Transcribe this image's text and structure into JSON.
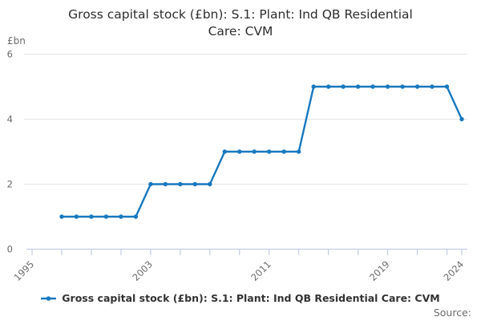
{
  "header": {
    "title": "Gross capital stock (£bn): S.1: Plant: Ind QB Residential Care: CVM",
    "title_lines": [
      "Gross capital stock (£bn): S.1: Plant: Ind QB Residential",
      "Care: CVM"
    ]
  },
  "axes": {
    "y_unit": "£bn",
    "y_tick_labels": [
      "0",
      "2",
      "4",
      "6"
    ],
    "x_tick_labels": [
      "1995",
      "2003",
      "2011",
      "2019",
      "2024"
    ]
  },
  "legend": {
    "label": "Gross capital stock (£bn): S.1: Plant: Ind QB Residential Care: CVM"
  },
  "footer": {
    "source": "Source:"
  },
  "colors": {
    "line": "#1878bf",
    "grid": "#e4e4e4",
    "axis": "#c5cde4",
    "tick_label": "#6b6b6b",
    "title": "#2e2e2e",
    "legend_text": "#333333",
    "source": "#6b6b6b"
  },
  "chart_data": {
    "type": "line",
    "title": "Gross capital stock (£bn): S.1: Plant: Ind QB Residential Care: CVM",
    "xlabel": "",
    "ylabel": "£bn",
    "x": [
      1997,
      1998,
      1999,
      2000,
      2001,
      2002,
      2003,
      2004,
      2005,
      2006,
      2007,
      2008,
      2009,
      2010,
      2011,
      2012,
      2013,
      2014,
      2015,
      2016,
      2017,
      2018,
      2019,
      2020,
      2021,
      2022,
      2023,
      2024
    ],
    "series": [
      {
        "name": "Gross capital stock (£bn): S.1: Plant: Ind QB Residential Care: CVM",
        "values": [
          1,
          1,
          1,
          1,
          1,
          1,
          2,
          2,
          2,
          2,
          2,
          3,
          3,
          3,
          3,
          3,
          3,
          5,
          5,
          5,
          5,
          5,
          5,
          5,
          5,
          5,
          5,
          4
        ]
      }
    ],
    "ylim": [
      0,
      6
    ],
    "y_ticks": [
      0,
      2,
      4,
      6
    ],
    "x_axis": {
      "start": 1995,
      "end": 2024,
      "minor_tick_step": 2,
      "labeled_ticks": [
        1995,
        2003,
        2011,
        2019,
        2024
      ]
    },
    "grid": "horizontal",
    "marker": "circle",
    "legend_position": "bottom"
  }
}
